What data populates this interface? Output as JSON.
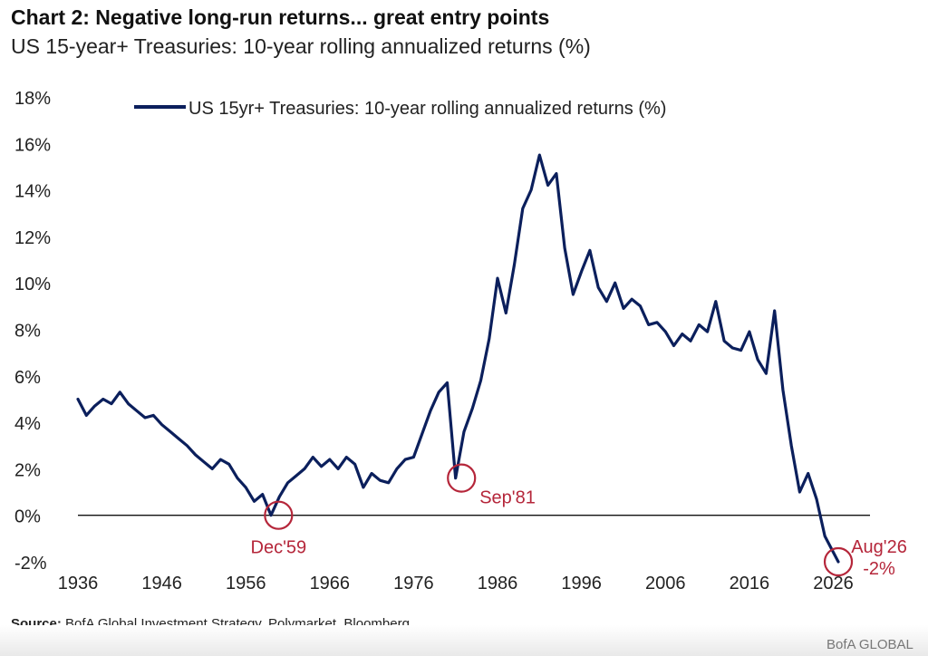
{
  "header": {
    "title": "Chart 2: Negative long-run returns... great entry points",
    "subtitle": "US 15-year+ Treasuries: 10-year rolling annualized returns (%)"
  },
  "footer": {
    "source_label": "Source:",
    "source_text": " BofA Global Investment Strategy, Polymarket, Bloomberg",
    "brand": "BofA GLOBAL"
  },
  "colors": {
    "line": "#0b1f5c",
    "annotation": "#b5263a",
    "axis": "#111111"
  },
  "chart_data": {
    "type": "line",
    "title": "Chart 2: Negative long-run returns... great entry points",
    "subtitle": "US 15-year+ Treasuries: 10-year rolling annualized returns (%)",
    "xlabel": "",
    "ylabel": "",
    "xlim": [
      1936,
      2028
    ],
    "ylim": [
      -2,
      18
    ],
    "xticks": [
      1936,
      1946,
      1956,
      1966,
      1976,
      1986,
      1996,
      2006,
      2016,
      2026
    ],
    "yticks": [
      -2,
      0,
      2,
      4,
      6,
      8,
      10,
      12,
      14,
      16,
      18
    ],
    "ytick_labels": [
      "-2%",
      "0%",
      "2%",
      "4%",
      "6%",
      "8%",
      "10%",
      "12%",
      "14%",
      "16%",
      "18%"
    ],
    "grid": false,
    "zero_line": true,
    "legend": {
      "position": "top-left"
    },
    "series": [
      {
        "name": "US 15yr+ Treasuries: 10-year rolling annualized returns (%)",
        "x": [
          1936,
          1937,
          1938,
          1939,
          1940,
          1941,
          1942,
          1943,
          1944,
          1945,
          1946,
          1947,
          1948,
          1949,
          1950,
          1951,
          1952,
          1953,
          1954,
          1955,
          1956,
          1957,
          1958,
          1959,
          1960,
          1961,
          1962,
          1963,
          1964,
          1965,
          1966,
          1967,
          1968,
          1969,
          1970,
          1971,
          1972,
          1973,
          1974,
          1975,
          1976,
          1977,
          1978,
          1979,
          1980,
          1981,
          1982,
          1983,
          1984,
          1985,
          1986,
          1987,
          1988,
          1989,
          1990,
          1991,
          1992,
          1993,
          1994,
          1995,
          1996,
          1997,
          1998,
          1999,
          2000,
          2001,
          2002,
          2003,
          2004,
          2005,
          2006,
          2007,
          2008,
          2009,
          2010,
          2011,
          2012,
          2013,
          2014,
          2015,
          2016,
          2017,
          2018,
          2019,
          2020,
          2021,
          2022,
          2023,
          2024,
          2025,
          2026.6
        ],
        "values": [
          5.0,
          4.3,
          4.7,
          5.0,
          4.8,
          5.3,
          4.8,
          4.5,
          4.2,
          4.3,
          3.9,
          3.6,
          3.3,
          3.0,
          2.6,
          2.3,
          2.0,
          2.4,
          2.2,
          1.6,
          1.2,
          0.6,
          0.9,
          0.0,
          0.8,
          1.4,
          1.7,
          2.0,
          2.5,
          2.1,
          2.4,
          2.0,
          2.5,
          2.2,
          1.2,
          1.8,
          1.5,
          1.4,
          2.0,
          2.4,
          2.5,
          3.5,
          4.5,
          5.3,
          5.7,
          1.6,
          3.6,
          4.6,
          5.8,
          7.6,
          10.2,
          8.7,
          10.8,
          13.2,
          14.0,
          15.5,
          14.2,
          14.7,
          11.5,
          9.5,
          10.5,
          11.4,
          9.8,
          9.2,
          10.0,
          8.9,
          9.3,
          9.0,
          8.2,
          8.3,
          7.9,
          7.3,
          7.8,
          7.5,
          8.2,
          7.9,
          9.2,
          7.5,
          7.2,
          7.1,
          7.9,
          6.7,
          6.1,
          8.8,
          5.4,
          3.0,
          1.0,
          1.8,
          0.7,
          -0.9,
          -2.0
        ]
      }
    ],
    "annotations": [
      {
        "label": "Dec'59",
        "x": 1959.9,
        "y": 0.0
      },
      {
        "label": "Sep'81",
        "x": 1981.7,
        "y": 1.6
      },
      {
        "label": "Aug'26",
        "value_label": "-2%",
        "x": 2026.6,
        "y": -2.0
      }
    ]
  }
}
